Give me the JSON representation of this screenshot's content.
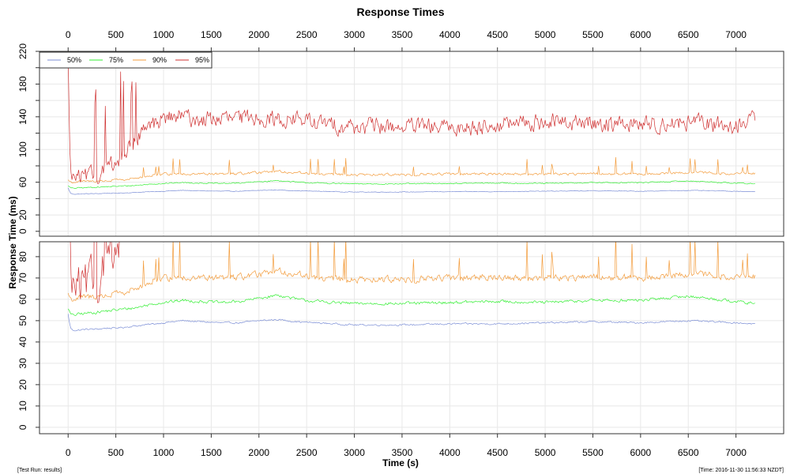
{
  "chart_data": {
    "type": "line",
    "title": "Response Times",
    "xlabel": "Time (s)",
    "ylabel": "Response Time (ms)",
    "x_ticks": [
      0,
      500,
      1000,
      1500,
      2000,
      2500,
      3000,
      3500,
      4000,
      4500,
      5000,
      5500,
      6000,
      6500,
      7000
    ],
    "xlim": [
      -300,
      7500
    ],
    "grid": true,
    "legend_position": "top-left",
    "panels": [
      {
        "name": "full range",
        "ylim": [
          -6,
          220
        ],
        "y_ticks": [
          0,
          20,
          60,
          100,
          140,
          180,
          220
        ],
        "y_minor_ticks": [
          40,
          80,
          120,
          160,
          200
        ]
      },
      {
        "name": "zoomed",
        "ylim": [
          -3,
          87
        ],
        "y_ticks": [
          0,
          10,
          20,
          30,
          40,
          50,
          60,
          70,
          80
        ]
      }
    ],
    "x_samples": [
      0,
      25,
      50,
      100,
      200,
      300,
      400,
      500,
      600,
      700,
      800,
      900,
      1000,
      1200,
      1400,
      1600,
      1800,
      2000,
      2200,
      2400,
      2600,
      2800,
      3000,
      3500,
      4000,
      4500,
      5000,
      5500,
      6000,
      6500,
      7000,
      7200
    ],
    "series": [
      {
        "name": "50%",
        "color": "#7b8ed6",
        "noise": 0.6,
        "values": [
          53,
          46.5,
          45.5,
          45.5,
          46,
          46,
          46.5,
          46.5,
          47,
          47.5,
          48,
          48.5,
          49,
          50,
          49.5,
          49,
          49,
          50,
          50.5,
          49.5,
          49,
          48.5,
          48,
          48,
          48.5,
          48.5,
          49,
          49.5,
          49,
          50,
          49,
          48.5
        ]
      },
      {
        "name": "75%",
        "color": "#33ee33",
        "noise": 1.1,
        "values": [
          56,
          53,
          52.5,
          53,
          53.5,
          54,
          54.5,
          55,
          55.5,
          56,
          57,
          58,
          58.5,
          59.5,
          59,
          58.5,
          59,
          60.5,
          62,
          60,
          59,
          58.5,
          58,
          58,
          58.5,
          59,
          58.5,
          59.5,
          59.5,
          61.5,
          59,
          58
        ]
      },
      {
        "name": "90%",
        "color": "#f39c3c",
        "noise": 2.4,
        "spikes": 12,
        "values": [
          63,
          60,
          60,
          60.5,
          61,
          61.5,
          62,
          62.5,
          63.5,
          64.5,
          67,
          69,
          70,
          70.5,
          70,
          70,
          70.5,
          71.5,
          73,
          72,
          70,
          69.5,
          69,
          69.5,
          70,
          70.5,
          70,
          70.5,
          70,
          72,
          70.5,
          71
        ]
      },
      {
        "name": "95%",
        "color": "#cf3030",
        "noise": 16,
        "values": [
          212,
          66,
          65,
          65,
          66,
          70,
          76,
          85,
          96,
          110,
          125,
          132,
          138,
          140,
          136,
          138,
          137,
          140,
          136,
          138,
          132,
          130,
          128,
          128,
          126,
          130,
          134,
          132,
          131,
          133,
          128,
          140
        ]
      }
    ]
  },
  "footer": {
    "left": "[Test Run: results]",
    "right": "[Time: 2016-11-30 11:56:33 NZDT]"
  }
}
